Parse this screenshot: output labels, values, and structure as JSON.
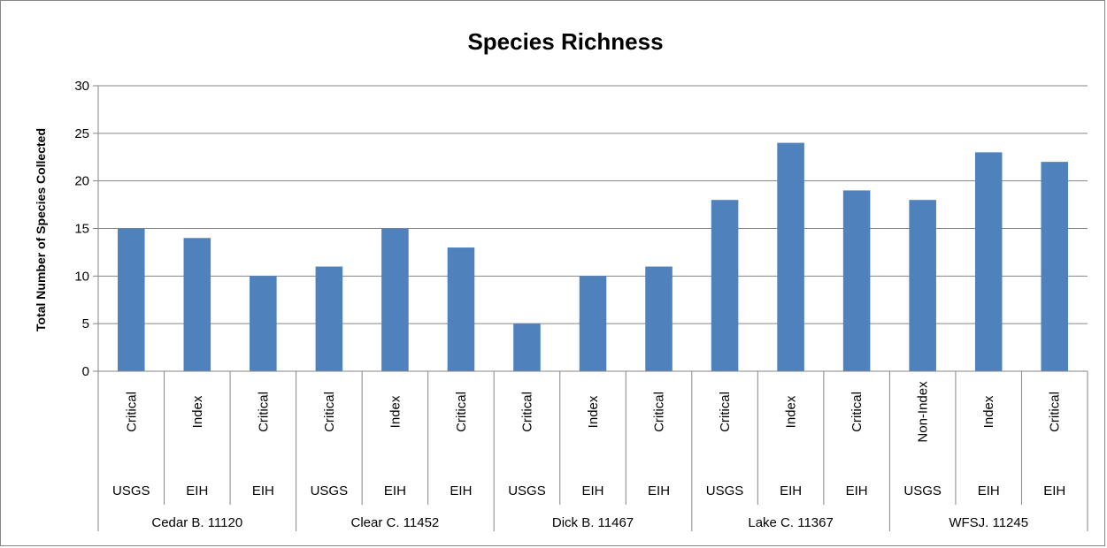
{
  "chart_data": {
    "type": "bar",
    "title": "Species Richness",
    "ylabel": "Total Number of Species Collected",
    "xlabel": "",
    "ylim": [
      0,
      30
    ],
    "yticks": [
      0,
      5,
      10,
      15,
      20,
      25,
      30
    ],
    "grid": true,
    "legend": "none",
    "bar_color": "#4f81bd",
    "categories": [
      {
        "type": "Critical",
        "source": "USGS",
        "site": "Cedar B. 11120"
      },
      {
        "type": "Index",
        "source": "EIH",
        "site": "Cedar B. 11120"
      },
      {
        "type": "Critical",
        "source": "EIH",
        "site": "Cedar B. 11120"
      },
      {
        "type": "Critical",
        "source": "USGS",
        "site": "Clear C. 11452"
      },
      {
        "type": "Index",
        "source": "EIH",
        "site": "Clear C. 11452"
      },
      {
        "type": "Critical",
        "source": "EIH",
        "site": "Clear C. 11452"
      },
      {
        "type": "Critical",
        "source": "USGS",
        "site": "Dick B. 11467"
      },
      {
        "type": "Index",
        "source": "EIH",
        "site": "Dick B. 11467"
      },
      {
        "type": "Critical",
        "source": "EIH",
        "site": "Dick B. 11467"
      },
      {
        "type": "Critical",
        "source": "USGS",
        "site": "Lake C. 11367"
      },
      {
        "type": "Index",
        "source": "EIH",
        "site": "Lake C. 11367"
      },
      {
        "type": "Critical",
        "source": "EIH",
        "site": "Lake C. 11367"
      },
      {
        "type": "Non-Index",
        "source": "USGS",
        "site": "WFSJ. 11245"
      },
      {
        "type": "Index",
        "source": "EIH",
        "site": "WFSJ. 11245"
      },
      {
        "type": "Critical",
        "source": "EIH",
        "site": "WFSJ. 11245"
      }
    ],
    "sites": [
      "Cedar B. 11120",
      "Clear C. 11452",
      "Dick B. 11467",
      "Lake C. 11367",
      "WFSJ. 11245"
    ],
    "values": [
      15,
      14,
      10,
      11,
      15,
      13,
      5,
      10,
      11,
      18,
      24,
      19,
      18,
      23,
      22
    ]
  }
}
